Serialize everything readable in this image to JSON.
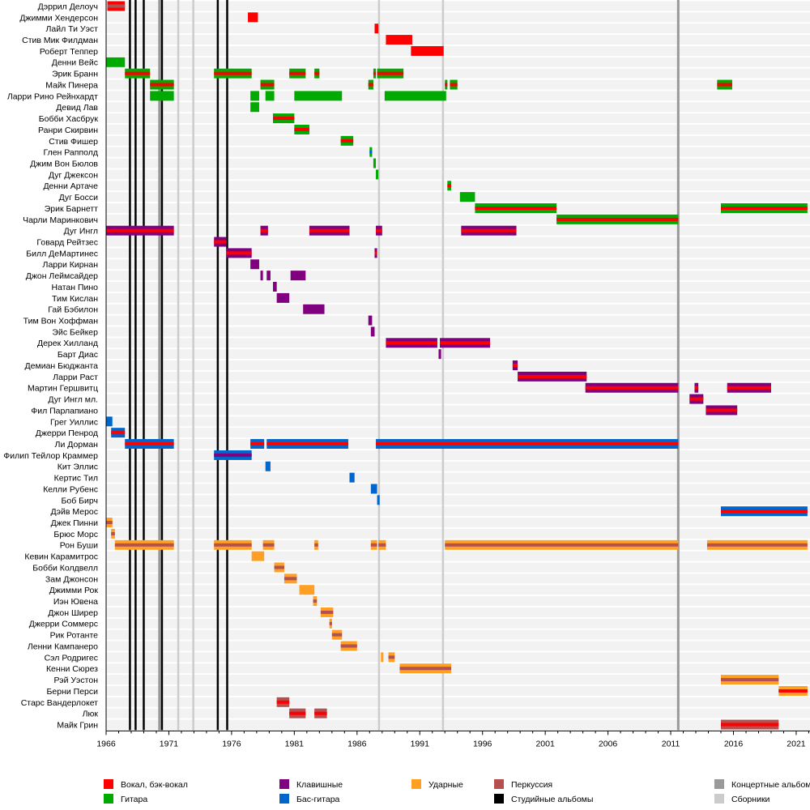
{
  "chart_data": {
    "type": "timeline",
    "title": "",
    "xlabel": "",
    "ylabel": "",
    "xlim": [
      1966,
      2022.5
    ],
    "x_ticks": [
      "1966",
      "1971",
      "1976",
      "1981",
      "1986",
      "1991",
      "1996",
      "2001",
      "2006",
      "2011",
      "2016",
      "2021"
    ],
    "x_tick_values": [
      1966,
      1971,
      1976,
      1981,
      1986,
      1991,
      1996,
      2001,
      2006,
      2011,
      2016,
      2021
    ],
    "roles": {
      "vocals": {
        "label": "Вокал, бэк-вокал",
        "color": "#ff0000"
      },
      "guitar": {
        "label": "Гитара",
        "color": "#00aa00"
      },
      "keys": {
        "label": "Клавишные",
        "color": "#800080"
      },
      "bass": {
        "label": "Бас-гитара",
        "color": "#0066cc"
      },
      "drums": {
        "label": "Ударные",
        "color": "#ffa024"
      },
      "perc": {
        "label": "Перкуссия",
        "color": "#b35050"
      },
      "studio": {
        "label": "Студийные альбомы",
        "color": "#000000"
      },
      "live": {
        "label": "Концертные альбом",
        "color": "#999999"
      },
      "comp": {
        "label": "Сборники",
        "color": "#cccccc"
      }
    },
    "legend_order": [
      [
        "vocals",
        "guitar"
      ],
      [
        "keys",
        "bass"
      ],
      [
        "drums"
      ],
      [
        "perc",
        "studio"
      ],
      [
        "live",
        "comp"
      ]
    ],
    "legend_placement": "bottom",
    "album_lines": [
      {
        "type": "studio",
        "year": 1967.9
      },
      {
        "type": "studio",
        "year": 1968.35
      },
      {
        "type": "studio",
        "year": 1969.0
      },
      {
        "type": "live",
        "year": 1970.25
      },
      {
        "type": "studio",
        "year": 1970.45
      },
      {
        "type": "comp",
        "year": 1971.75
      },
      {
        "type": "comp",
        "year": 1972.95
      },
      {
        "type": "studio",
        "year": 1974.9
      },
      {
        "type": "studio",
        "year": 1975.65
      },
      {
        "type": "comp",
        "year": 1987.75
      },
      {
        "type": "comp",
        "year": 1992.85
      },
      {
        "type": "live",
        "year": 2011.6
      }
    ],
    "members": [
      {
        "name": "Дэррил Делоуч",
        "bars": [
          [
            1966.1,
            1967.5,
            "vocals",
            "perc"
          ]
        ]
      },
      {
        "name": "Джимми Хендерсон",
        "bars": [
          [
            1977.3,
            1978.1,
            "vocals",
            null
          ]
        ]
      },
      {
        "name": "Лайл Ти Уэст",
        "bars": [
          [
            1987.4,
            1987.7,
            "vocals",
            null
          ]
        ]
      },
      {
        "name": "Стив Мик Филдман",
        "bars": [
          [
            1988.3,
            1990.4,
            "vocals",
            null
          ]
        ]
      },
      {
        "name": "Роберт Теппер",
        "bars": [
          [
            1990.3,
            1992.9,
            "vocals",
            null
          ]
        ]
      },
      {
        "name": "Денни Вейс",
        "bars": [
          [
            1966.0,
            1967.5,
            "guitar",
            null
          ]
        ]
      },
      {
        "name": "Эрик Бранн",
        "bars": [
          [
            1967.5,
            1969.5,
            "guitar",
            "vocals"
          ],
          [
            1974.6,
            1977.6,
            "guitar",
            "vocals"
          ],
          [
            1980.6,
            1981.9,
            "guitar",
            "vocals"
          ],
          [
            1982.6,
            1983.0,
            "guitar",
            "vocals"
          ],
          [
            1987.3,
            1987.5,
            "guitar",
            "vocals"
          ],
          [
            1987.6,
            1989.7,
            "guitar",
            "vocals"
          ]
        ]
      },
      {
        "name": "Майк Пинера",
        "bars": [
          [
            1969.5,
            1971.4,
            "guitar",
            "vocals"
          ],
          [
            1978.3,
            1979.4,
            "guitar",
            "vocals"
          ],
          [
            1986.9,
            1987.3,
            "guitar",
            "vocals"
          ],
          [
            1993.0,
            1993.2,
            "guitar",
            "vocals"
          ],
          [
            1993.4,
            1994.0,
            "guitar",
            "vocals"
          ],
          [
            2014.7,
            2015.9,
            "guitar",
            "vocals"
          ]
        ]
      },
      {
        "name": "Ларри Рино Рейнхардт",
        "bars": [
          [
            1969.5,
            1971.4,
            "guitar",
            null
          ],
          [
            1977.5,
            1978.2,
            "guitar",
            null
          ],
          [
            1978.7,
            1979.4,
            "guitar",
            null
          ],
          [
            1981.0,
            1984.8,
            "guitar",
            null
          ],
          [
            1988.2,
            1993.1,
            "guitar",
            null
          ]
        ]
      },
      {
        "name": "Девид Лав",
        "bars": [
          [
            1977.5,
            1978.2,
            "guitar",
            null
          ]
        ]
      },
      {
        "name": "Бобби Хасбрук",
        "bars": [
          [
            1979.3,
            1981.0,
            "guitar",
            "vocals"
          ]
        ]
      },
      {
        "name": "Ранри Скирвин",
        "bars": [
          [
            1981.0,
            1982.2,
            "guitar",
            "vocals"
          ]
        ]
      },
      {
        "name": "Стив Фишер",
        "bars": [
          [
            1984.7,
            1985.7,
            "guitar",
            "vocals"
          ]
        ]
      },
      {
        "name": "Глен Рапполд",
        "bars": [
          [
            1987.0,
            1987.2,
            "guitar",
            "bass"
          ]
        ]
      },
      {
        "name": "Джим Вон Бюлов",
        "bars": [
          [
            1987.3,
            1987.5,
            "guitar",
            null
          ]
        ]
      },
      {
        "name": "Дуг Джексон",
        "bars": [
          [
            1987.5,
            1987.7,
            "guitar",
            null
          ]
        ]
      },
      {
        "name": "Денни Артаче",
        "bars": [
          [
            1993.2,
            1993.5,
            "guitar",
            "vocals"
          ]
        ]
      },
      {
        "name": "Дуг Босси",
        "bars": [
          [
            1994.2,
            1995.4,
            "guitar",
            null
          ]
        ]
      },
      {
        "name": "Эрик Барнетт",
        "bars": [
          [
            1995.4,
            2001.9,
            "guitar",
            "vocals"
          ],
          [
            2015.0,
            2021.9,
            "guitar",
            "vocals"
          ]
        ]
      },
      {
        "name": "Чарли Маринкович",
        "bars": [
          [
            2001.9,
            2011.6,
            "guitar",
            "vocals"
          ]
        ]
      },
      {
        "name": "Дуг Ингл",
        "bars": [
          [
            1966.0,
            1971.4,
            "keys",
            "vocals"
          ],
          [
            1978.3,
            1978.9,
            "keys",
            "vocals"
          ],
          [
            1982.2,
            1985.4,
            "keys",
            "vocals"
          ],
          [
            1987.5,
            1988.0,
            "keys",
            "vocals"
          ],
          [
            1994.3,
            1998.7,
            "keys",
            "vocals"
          ]
        ]
      },
      {
        "name": "Говард Рейтзес",
        "bars": [
          [
            1974.6,
            1975.6,
            "keys",
            "vocals"
          ]
        ]
      },
      {
        "name": "Билл ДеМартинес",
        "bars": [
          [
            1975.6,
            1977.6,
            "keys",
            "vocals"
          ],
          [
            1987.4,
            1987.6,
            "keys",
            "vocals"
          ]
        ]
      },
      {
        "name": "Ларри Кирнан",
        "bars": [
          [
            1977.5,
            1978.2,
            "keys",
            null
          ]
        ]
      },
      {
        "name": "Джон Леймсайдер",
        "bars": [
          [
            1978.3,
            1978.5,
            "keys",
            null
          ],
          [
            1978.8,
            1979.1,
            "keys",
            null
          ],
          [
            1980.7,
            1981.9,
            "keys",
            null
          ]
        ]
      },
      {
        "name": "Натан Пино",
        "bars": [
          [
            1979.3,
            1979.6,
            "keys",
            null
          ]
        ]
      },
      {
        "name": "Тим Кислан",
        "bars": [
          [
            1979.6,
            1980.6,
            "keys",
            null
          ]
        ]
      },
      {
        "name": "Гай Бэбилон",
        "bars": [
          [
            1981.7,
            1983.4,
            "keys",
            null
          ]
        ]
      },
      {
        "name": "Тим Вон Хоффман",
        "bars": [
          [
            1986.9,
            1987.2,
            "keys",
            null
          ]
        ]
      },
      {
        "name": "Эйс Бейкер",
        "bars": [
          [
            1987.1,
            1987.4,
            "keys",
            null
          ]
        ]
      },
      {
        "name": "Дерек Хилланд",
        "bars": [
          [
            1988.3,
            1992.4,
            "keys",
            "vocals"
          ],
          [
            1992.6,
            1996.6,
            "keys",
            "vocals"
          ]
        ]
      },
      {
        "name": "Барт Диас",
        "bars": [
          [
            1992.5,
            1992.7,
            "keys",
            null
          ]
        ]
      },
      {
        "name": "Демиан Бюджанта",
        "bars": [
          [
            1998.4,
            1998.8,
            "keys",
            "vocals"
          ]
        ]
      },
      {
        "name": "Ларри Раст",
        "bars": [
          [
            1998.8,
            2004.3,
            "keys",
            "vocals"
          ]
        ]
      },
      {
        "name": "Мартин Гершвитц",
        "bars": [
          [
            2004.2,
            2011.6,
            "keys",
            "vocals"
          ],
          [
            2012.9,
            2013.2,
            "keys",
            "vocals"
          ],
          [
            2015.5,
            2019.0,
            "keys",
            "vocals"
          ]
        ]
      },
      {
        "name": "Дуг Ингл мл.",
        "bars": [
          [
            2012.5,
            2013.6,
            "keys",
            "vocals"
          ]
        ]
      },
      {
        "name": "Фил Парлапиано",
        "bars": [
          [
            2013.8,
            2016.3,
            "keys",
            "vocals"
          ]
        ]
      },
      {
        "name": "Грег Уиллис",
        "bars": [
          [
            1966.0,
            1966.5,
            "bass",
            null
          ]
        ]
      },
      {
        "name": "Джерри Пенрод",
        "bars": [
          [
            1966.4,
            1967.5,
            "bass",
            "vocals"
          ]
        ]
      },
      {
        "name": "Ли Дорман",
        "bars": [
          [
            1967.5,
            1971.4,
            "bass",
            "vocals"
          ],
          [
            1977.5,
            1978.6,
            "bass",
            "vocals"
          ],
          [
            1978.8,
            1985.3,
            "bass",
            "vocals"
          ],
          [
            1987.5,
            2011.6,
            "bass",
            "vocals"
          ]
        ]
      },
      {
        "name": "Филип Тейлор Краммер",
        "bars": [
          [
            1974.6,
            1977.6,
            "bass",
            "keys"
          ]
        ]
      },
      {
        "name": "Кит Эллис",
        "bars": [
          [
            1978.7,
            1979.1,
            "bass",
            null
          ]
        ]
      },
      {
        "name": "Кертис Тил",
        "bars": [
          [
            1985.4,
            1985.8,
            "bass",
            null
          ]
        ]
      },
      {
        "name": "Келли Рубенс",
        "bars": [
          [
            1987.1,
            1987.6,
            "bass",
            null
          ]
        ]
      },
      {
        "name": "Боб Бирч",
        "bars": [
          [
            1987.6,
            1987.8,
            "bass",
            null
          ]
        ]
      },
      {
        "name": "Дэйв Мерос",
        "bars": [
          [
            2015.0,
            2021.9,
            "bass",
            "vocals"
          ]
        ]
      },
      {
        "name": "Джек Пинни",
        "bars": [
          [
            1966.0,
            1966.5,
            "drums",
            "perc"
          ]
        ]
      },
      {
        "name": "Брюс Морс",
        "bars": [
          [
            1966.4,
            1966.7,
            "drums",
            "perc"
          ]
        ]
      },
      {
        "name": "Рон Буши",
        "bars": [
          [
            1966.7,
            1971.4,
            "drums",
            "perc"
          ],
          [
            1974.6,
            1977.6,
            "drums",
            "perc"
          ],
          [
            1978.5,
            1979.4,
            "drums",
            "perc"
          ],
          [
            1982.6,
            1982.9,
            "drums",
            "perc"
          ],
          [
            1987.1,
            1987.6,
            "drums",
            "perc"
          ],
          [
            1987.7,
            1988.3,
            "drums",
            "perc"
          ],
          [
            1993.0,
            2011.6,
            "drums",
            "perc"
          ],
          [
            2013.9,
            2021.9,
            "drums",
            "perc"
          ]
        ]
      },
      {
        "name": "Кевин Карамитрос",
        "bars": [
          [
            1977.6,
            1978.6,
            "drums",
            null
          ]
        ]
      },
      {
        "name": "Бобби Колдвелл",
        "bars": [
          [
            1979.4,
            1980.2,
            "drums",
            "perc"
          ]
        ]
      },
      {
        "name": "Зам Джонсон",
        "bars": [
          [
            1980.2,
            1981.2,
            "drums",
            "perc"
          ]
        ]
      },
      {
        "name": "Джимми Рок",
        "bars": [
          [
            1981.4,
            1982.6,
            "drums",
            null
          ]
        ]
      },
      {
        "name": "Иэн Ювена",
        "bars": [
          [
            1982.5,
            1982.8,
            "drums",
            "perc"
          ]
        ]
      },
      {
        "name": "Джон Ширер",
        "bars": [
          [
            1983.1,
            1984.1,
            "drums",
            "perc"
          ]
        ]
      },
      {
        "name": "Джерри Соммерс",
        "bars": [
          [
            1983.8,
            1984.0,
            "drums",
            "perc"
          ]
        ]
      },
      {
        "name": "Рик Ротанте",
        "bars": [
          [
            1984.0,
            1984.8,
            "drums",
            "perc"
          ]
        ]
      },
      {
        "name": "Ленни Кампанеро",
        "bars": [
          [
            1984.7,
            1986.0,
            "drums",
            "perc"
          ]
        ]
      },
      {
        "name": "Сэл Родригес",
        "bars": [
          [
            1987.9,
            1988.1,
            "drums",
            null
          ],
          [
            1988.5,
            1989.0,
            "drums",
            "perc"
          ]
        ]
      },
      {
        "name": "Кенни Сюрез",
        "bars": [
          [
            1989.4,
            1993.5,
            "drums",
            "perc"
          ]
        ]
      },
      {
        "name": "Рэй Уэстон",
        "bars": [
          [
            2015.0,
            2019.6,
            "drums",
            "perc"
          ]
        ]
      },
      {
        "name": "Берни Перси",
        "bars": [
          [
            2019.6,
            2021.9,
            "drums",
            "vocals"
          ]
        ]
      },
      {
        "name": "Старс Вандерлокет",
        "bars": [
          [
            1979.6,
            1980.6,
            "perc",
            "vocals"
          ]
        ]
      },
      {
        "name": "Люк",
        "bars": [
          [
            1980.6,
            1981.9,
            "perc",
            "vocals"
          ],
          [
            1982.6,
            1983.6,
            "perc",
            "vocals"
          ]
        ]
      },
      {
        "name": "Майк Грин",
        "bars": [
          [
            2015.0,
            2019.6,
            "perc",
            "vocals"
          ]
        ]
      }
    ]
  }
}
